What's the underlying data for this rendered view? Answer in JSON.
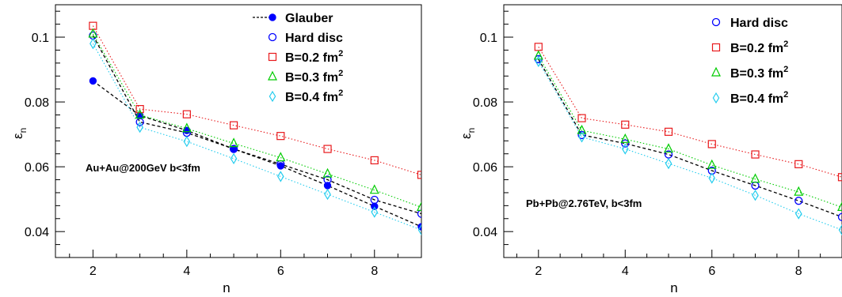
{
  "chart_data": [
    {
      "type": "scatter",
      "xlabel": "n",
      "ylabel": "ε",
      "ylabel_sub": "n",
      "xlim": [
        1.2,
        9
      ],
      "ylim": [
        0.032,
        0.11
      ],
      "xticks": [
        2,
        4,
        6,
        8
      ],
      "yticks": [
        0.04,
        0.06,
        0.08,
        0.1
      ],
      "ytick_labels": [
        "0.04",
        "0.06",
        "0.08",
        "0.1"
      ],
      "annotation": "Au+Au@200GeV b<3fm",
      "legend_position": "top-right",
      "series": [
        {
          "name": "Glauber",
          "marker": "filled-circle",
          "line": "dashed",
          "color": "#0000ff",
          "x": [
            2,
            3,
            4,
            5,
            6,
            7,
            8,
            9
          ],
          "y": [
            0.0865,
            0.0758,
            0.0712,
            0.0655,
            0.0603,
            0.0542,
            0.0478,
            0.0415
          ]
        },
        {
          "name": "Hard disc",
          "marker": "open-circle",
          "line": "dashed",
          "color": "#0000ff",
          "x": [
            2,
            3,
            4,
            5,
            6,
            7,
            8,
            9
          ],
          "y": [
            0.1005,
            0.0738,
            0.0705,
            0.0655,
            0.0608,
            0.056,
            0.0498,
            0.0455
          ]
        },
        {
          "name": "B=0.2 fm",
          "name_sup": "2",
          "marker": "open-square",
          "line": "dotted",
          "color": "#e8191c",
          "x": [
            2,
            3,
            4,
            5,
            6,
            7,
            8,
            9
          ],
          "y": [
            0.1035,
            0.0778,
            0.0762,
            0.0728,
            0.0695,
            0.0655,
            0.062,
            0.0575
          ]
        },
        {
          "name": "B=0.3 fm",
          "name_sup": "2",
          "marker": "open-triangle",
          "line": "dotted",
          "color": "#00cc00",
          "x": [
            2,
            3,
            4,
            5,
            6,
            7,
            8,
            9
          ],
          "y": [
            0.101,
            0.076,
            0.0718,
            0.0672,
            0.0628,
            0.0578,
            0.0528,
            0.0475
          ]
        },
        {
          "name": "B=0.4 fm",
          "name_sup": "2",
          "marker": "open-diamond",
          "line": "dotted",
          "color": "#22ccee",
          "x": [
            2,
            3,
            4,
            5,
            6,
            7,
            8,
            9
          ],
          "y": [
            0.098,
            0.0722,
            0.0678,
            0.0625,
            0.057,
            0.0515,
            0.046,
            0.0405
          ]
        }
      ]
    },
    {
      "type": "scatter",
      "xlabel": "n",
      "ylabel": "ε",
      "ylabel_sub": "n",
      "xlim": [
        1.2,
        9
      ],
      "ylim": [
        0.032,
        0.11
      ],
      "xticks": [
        2,
        4,
        6,
        8
      ],
      "yticks": [
        0.04,
        0.06,
        0.08,
        0.1
      ],
      "ytick_labels": [
        "0.04",
        "0.06",
        "0.08",
        "0.1"
      ],
      "annotation": "Pb+Pb@2.76TeV, b<3fm",
      "legend_position": "top-right",
      "series": [
        {
          "name": "Hard disc",
          "marker": "open-circle",
          "line": "dashed",
          "color": "#0000ff",
          "x": [
            2,
            3,
            4,
            5,
            6,
            7,
            8,
            9
          ],
          "y": [
            0.0932,
            0.0698,
            0.0672,
            0.0638,
            0.0588,
            0.0542,
            0.0495,
            0.0445
          ]
        },
        {
          "name": "B=0.2 fm",
          "name_sup": "2",
          "marker": "open-square",
          "line": "dotted",
          "color": "#e8191c",
          "x": [
            2,
            3,
            4,
            5,
            6,
            7,
            8,
            9
          ],
          "y": [
            0.097,
            0.075,
            0.073,
            0.0708,
            0.067,
            0.0638,
            0.0608,
            0.0568
          ]
        },
        {
          "name": "B=0.3 fm",
          "name_sup": "2",
          "marker": "open-triangle",
          "line": "dotted",
          "color": "#00cc00",
          "x": [
            2,
            3,
            4,
            5,
            6,
            7,
            8,
            9
          ],
          "y": [
            0.0942,
            0.0712,
            0.0685,
            0.0655,
            0.0605,
            0.0562,
            0.0522,
            0.0475
          ]
        },
        {
          "name": "B=0.4 fm",
          "name_sup": "2",
          "marker": "open-diamond",
          "line": "dotted",
          "color": "#22ccee",
          "x": [
            2,
            3,
            4,
            5,
            6,
            7,
            8,
            9
          ],
          "y": [
            0.0925,
            0.0692,
            0.0655,
            0.061,
            0.0565,
            0.0512,
            0.0455,
            0.0405
          ]
        }
      ]
    }
  ]
}
